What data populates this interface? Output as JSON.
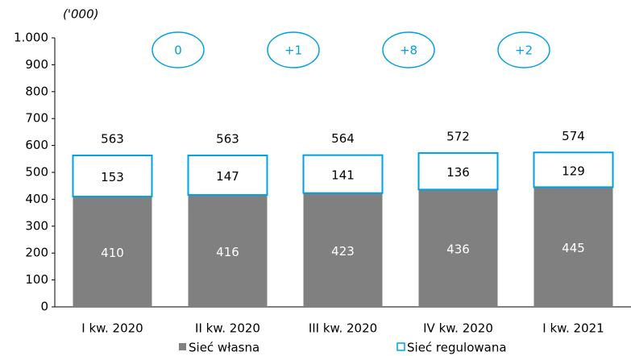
{
  "chart_data": {
    "type": "stacked-bar",
    "unit_label": "('000)",
    "categories": [
      "I kw. 2020",
      "II kw. 2020",
      "III kw. 2020",
      "IV kw. 2020",
      "I kw. 2021"
    ],
    "series": [
      {
        "name": "Sieć własna",
        "color": "#808080",
        "values": [
          410,
          416,
          423,
          436,
          445
        ]
      },
      {
        "name": "Sieć regulowana",
        "color": "#00a0e3",
        "values": [
          153,
          147,
          141,
          136,
          129
        ]
      }
    ],
    "totals": [
      563,
      563,
      564,
      572,
      574
    ],
    "changes": [
      "0",
      "+1",
      "+8",
      "+2"
    ],
    "ylim": [
      0,
      1000
    ],
    "yticks": [
      0,
      100,
      200,
      300,
      400,
      500,
      600,
      700,
      800,
      900,
      {
        "value": 1000,
        "label": "1.000"
      }
    ]
  }
}
